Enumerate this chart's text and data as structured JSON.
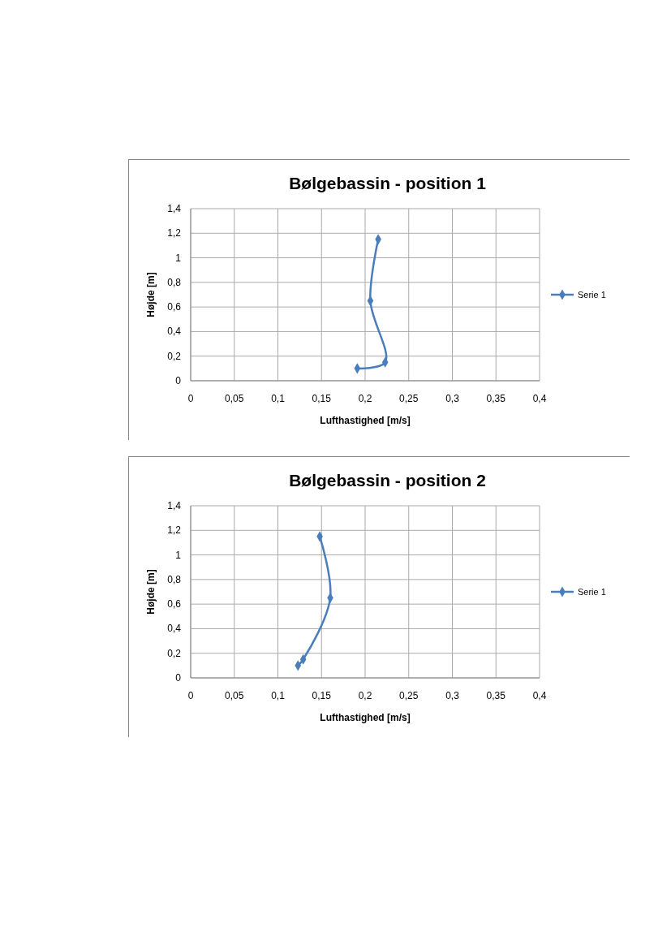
{
  "chart_data": [
    {
      "type": "line",
      "title": "Bølgebassin - position 1",
      "xlabel": "Lufthastighed [m/s]",
      "ylabel": "Højde [m]",
      "series": [
        {
          "name": "Serie 1",
          "color": "#4a7ebb",
          "x": [
            0.191,
            0.223,
            0.206,
            0.215
          ],
          "values": [
            0.1,
            0.15,
            0.65,
            1.15
          ]
        }
      ],
      "ylim": [
        0,
        1.4
      ],
      "yticks": [
        {
          "value": 0,
          "label": "0"
        },
        {
          "value": 0.2,
          "label": "0,2"
        },
        {
          "value": 0.4,
          "label": "0,4"
        },
        {
          "value": 0.6,
          "label": "0,6"
        },
        {
          "value": 0.8,
          "label": "0,8"
        },
        {
          "value": 1,
          "label": "1"
        },
        {
          "value": 1.2,
          "label": "1,2"
        },
        {
          "value": 1.4,
          "label": "1,4"
        }
      ],
      "xlim": [
        0,
        0.4
      ],
      "xticks": [
        {
          "value": 0,
          "label": "0"
        },
        {
          "value": 0.05,
          "label": "0,05"
        },
        {
          "value": 0.1,
          "label": "0,1"
        },
        {
          "value": 0.15,
          "label": "0,15"
        },
        {
          "value": 0.2,
          "label": "0,2"
        },
        {
          "value": 0.25,
          "label": "0,25"
        },
        {
          "value": 0.3,
          "label": "0,3"
        },
        {
          "value": 0.35,
          "label": "0,35"
        },
        {
          "value": 0.4,
          "label": "0,4"
        }
      ],
      "grid": true,
      "legend": "right",
      "marker": "diamond",
      "line_style": "solid"
    },
    {
      "type": "line",
      "title": "Bølgebassin - position 2",
      "xlabel": "Lufthastighed [m/s]",
      "ylabel": "Højde [m]",
      "series": [
        {
          "name": "Serie 1",
          "color": "#4a7ebb",
          "x": [
            0.123,
            0.129,
            0.16,
            0.148
          ],
          "values": [
            0.1,
            0.15,
            0.65,
            1.15
          ]
        }
      ],
      "ylim": [
        0,
        1.4
      ],
      "yticks": [
        {
          "value": 0,
          "label": "0"
        },
        {
          "value": 0.2,
          "label": "0,2"
        },
        {
          "value": 0.4,
          "label": "0,4"
        },
        {
          "value": 0.6,
          "label": "0,6"
        },
        {
          "value": 0.8,
          "label": "0,8"
        },
        {
          "value": 1,
          "label": "1"
        },
        {
          "value": 1.2,
          "label": "1,2"
        },
        {
          "value": 1.4,
          "label": "1,4"
        }
      ],
      "xlim": [
        0,
        0.4
      ],
      "xticks": [
        {
          "value": 0,
          "label": "0"
        },
        {
          "value": 0.05,
          "label": "0,05"
        },
        {
          "value": 0.1,
          "label": "0,1"
        },
        {
          "value": 0.15,
          "label": "0,15"
        },
        {
          "value": 0.2,
          "label": "0,2"
        },
        {
          "value": 0.25,
          "label": "0,25"
        },
        {
          "value": 0.3,
          "label": "0,3"
        },
        {
          "value": 0.35,
          "label": "0,35"
        },
        {
          "value": 0.4,
          "label": "0,4"
        }
      ],
      "grid": true,
      "legend": "right",
      "marker": "diamond",
      "line_style": "solid"
    }
  ]
}
